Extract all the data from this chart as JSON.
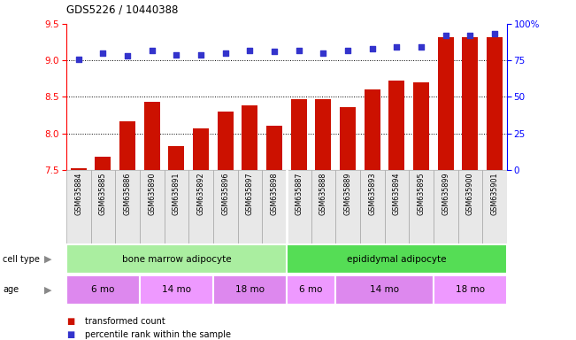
{
  "title": "GDS5226 / 10440388",
  "samples": [
    "GSM635884",
    "GSM635885",
    "GSM635886",
    "GSM635890",
    "GSM635891",
    "GSM635892",
    "GSM635896",
    "GSM635897",
    "GSM635898",
    "GSM635887",
    "GSM635888",
    "GSM635889",
    "GSM635893",
    "GSM635894",
    "GSM635895",
    "GSM635899",
    "GSM635900",
    "GSM635901"
  ],
  "bar_values": [
    7.52,
    7.68,
    8.17,
    8.43,
    7.83,
    8.07,
    8.3,
    8.38,
    8.1,
    8.47,
    8.47,
    8.36,
    8.6,
    8.72,
    8.7,
    9.32,
    9.32,
    9.32
  ],
  "dot_values": [
    76,
    80,
    78,
    82,
    79,
    79,
    80,
    82,
    81,
    82,
    80,
    82,
    83,
    84,
    84,
    92,
    92,
    93
  ],
  "bar_color": "#cc1100",
  "dot_color": "#3333cc",
  "ylim_left": [
    7.5,
    9.5
  ],
  "ylim_right": [
    0,
    100
  ],
  "yticks_left": [
    7.5,
    8.0,
    8.5,
    9.0,
    9.5
  ],
  "yticks_right": [
    0,
    25,
    50,
    75,
    100
  ],
  "grid_values": [
    8.0,
    8.5,
    9.0
  ],
  "cell_type_groups": [
    {
      "label": "bone marrow adipocyte",
      "start": 0,
      "end": 9,
      "color": "#aaeea0"
    },
    {
      "label": "epididymal adipocyte",
      "start": 9,
      "end": 18,
      "color": "#55dd55"
    }
  ],
  "age_groups": [
    {
      "label": "6 mo",
      "start": 0,
      "end": 3,
      "color": "#dd88ee"
    },
    {
      "label": "14 mo",
      "start": 3,
      "end": 6,
      "color": "#ee99ff"
    },
    {
      "label": "18 mo",
      "start": 6,
      "end": 9,
      "color": "#dd88ee"
    },
    {
      "label": "6 mo",
      "start": 9,
      "end": 11,
      "color": "#ee99ff"
    },
    {
      "label": "14 mo",
      "start": 11,
      "end": 15,
      "color": "#dd88ee"
    },
    {
      "label": "18 mo",
      "start": 15,
      "end": 18,
      "color": "#ee99ff"
    }
  ],
  "legend_items": [
    {
      "label": "transformed count",
      "color": "#cc1100"
    },
    {
      "label": "percentile rank within the sample",
      "color": "#3333cc"
    }
  ],
  "background_color": "#ffffff"
}
